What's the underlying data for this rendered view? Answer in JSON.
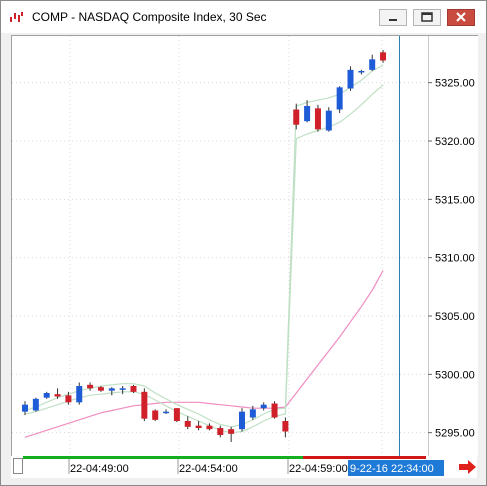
{
  "window": {
    "title": "COMP - NASDAQ Composite Index, 30 Sec",
    "icon": "chart-app-icon",
    "buttons": [
      "minimize",
      "maximize",
      "close"
    ]
  },
  "colors": {
    "up_candle": "#1e5bd6",
    "down_candle": "#d0202a",
    "band": "#bfe0c4",
    "slow_ma": "#f08cc0",
    "cursor_line": "#2a7fb0",
    "cursor_label_bg": "#1e7ad6",
    "arrow": "#e0201a",
    "timebar_green": "#12b01e",
    "timebar_red": "#d01616"
  },
  "chart_data": {
    "type": "candlestick",
    "title": "COMP - NASDAQ Composite Index, 30 Sec",
    "y_axis": {
      "range": [
        5293,
        5329
      ],
      "ticks": [
        "5295.00",
        "5300.00",
        "5305.00",
        "5310.00",
        "5315.00",
        "5320.00",
        "5325.00"
      ],
      "position": "right"
    },
    "x_axis": {
      "tick_labels": [
        "22-04:49:00",
        "22-04:54:00",
        "22-04:59:00"
      ],
      "cursor_label": "9-22-16 22:34:00"
    },
    "grid": true,
    "candles": [
      {
        "o": 5296.8,
        "h": 5297.7,
        "l": 5296.5,
        "c": 5297.4
      },
      {
        "o": 5296.9,
        "h": 5298.0,
        "l": 5296.8,
        "c": 5297.9
      },
      {
        "o": 5298.0,
        "h": 5298.5,
        "l": 5297.9,
        "c": 5298.4
      },
      {
        "o": 5298.3,
        "h": 5298.8,
        "l": 5297.9,
        "c": 5298.1
      },
      {
        "o": 5298.2,
        "h": 5298.5,
        "l": 5297.4,
        "c": 5297.6
      },
      {
        "o": 5297.6,
        "h": 5299.3,
        "l": 5297.4,
        "c": 5299.0
      },
      {
        "o": 5299.1,
        "h": 5299.3,
        "l": 5298.6,
        "c": 5298.8
      },
      {
        "o": 5298.9,
        "h": 5299.0,
        "l": 5298.5,
        "c": 5298.6
      },
      {
        "o": 5298.6,
        "h": 5298.9,
        "l": 5298.2,
        "c": 5298.8
      },
      {
        "o": 5298.7,
        "h": 5299.0,
        "l": 5298.3,
        "c": 5298.8
      },
      {
        "o": 5299.0,
        "h": 5299.1,
        "l": 5298.4,
        "c": 5298.5
      },
      {
        "o": 5298.5,
        "h": 5298.8,
        "l": 5296.0,
        "c": 5296.2
      },
      {
        "o": 5296.9,
        "h": 5297.0,
        "l": 5296.0,
        "c": 5296.1
      },
      {
        "o": 5296.7,
        "h": 5297.0,
        "l": 5296.6,
        "c": 5296.8
      },
      {
        "o": 5297.1,
        "h": 5297.1,
        "l": 5295.9,
        "c": 5296.0
      },
      {
        "o": 5296.0,
        "h": 5296.4,
        "l": 5295.3,
        "c": 5295.5
      },
      {
        "o": 5295.6,
        "h": 5296.0,
        "l": 5295.2,
        "c": 5295.4
      },
      {
        "o": 5295.6,
        "h": 5295.8,
        "l": 5295.2,
        "c": 5295.3
      },
      {
        "o": 5295.4,
        "h": 5295.6,
        "l": 5294.6,
        "c": 5294.8
      },
      {
        "o": 5295.3,
        "h": 5295.5,
        "l": 5294.2,
        "c": 5294.9
      },
      {
        "o": 5295.3,
        "h": 5297.1,
        "l": 5295.1,
        "c": 5296.8
      },
      {
        "o": 5296.3,
        "h": 5297.3,
        "l": 5296.1,
        "c": 5297.0
      },
      {
        "o": 5297.1,
        "h": 5297.6,
        "l": 5296.9,
        "c": 5297.4
      },
      {
        "o": 5297.5,
        "h": 5297.7,
        "l": 5296.2,
        "c": 5296.3
      },
      {
        "o": 5296.0,
        "h": 5296.3,
        "l": 5294.6,
        "c": 5295.1
      },
      {
        "o": 5322.7,
        "h": 5323.2,
        "l": 5321.0,
        "c": 5321.4
      },
      {
        "o": 5321.7,
        "h": 5323.5,
        "l": 5321.6,
        "c": 5323.0
      },
      {
        "o": 5322.8,
        "h": 5323.1,
        "l": 5320.8,
        "c": 5321.0
      },
      {
        "o": 5320.9,
        "h": 5322.9,
        "l": 5320.8,
        "c": 5322.6
      },
      {
        "o": 5322.7,
        "h": 5324.7,
        "l": 5322.4,
        "c": 5324.6
      },
      {
        "o": 5324.5,
        "h": 5326.4,
        "l": 5324.3,
        "c": 5326.1
      },
      {
        "o": 5325.9,
        "h": 5326.1,
        "l": 5325.7,
        "c": 5326.0
      },
      {
        "o": 5326.1,
        "h": 5327.4,
        "l": 5326.0,
        "c": 5327.0
      },
      {
        "o": 5327.6,
        "h": 5327.8,
        "l": 5326.7,
        "c": 5326.9
      }
    ],
    "band_upper": [
      5296.9,
      5297.2,
      5297.6,
      5298.0,
      5298.3,
      5298.6,
      5298.8,
      5299.0,
      5299.1,
      5299.2,
      5299.2,
      5299.0,
      5298.4,
      5297.9,
      5297.4,
      5297.0,
      5296.6,
      5296.1,
      5295.7,
      5295.5,
      5295.7,
      5296.1,
      5296.6,
      5297.0,
      5297.1,
      5323.0,
      5323.3,
      5323.5,
      5323.7,
      5324.0,
      5324.6,
      5325.2,
      5326.0,
      5326.5
    ],
    "band_lower": [
      5296.6,
      5296.8,
      5297.1,
      5297.4,
      5297.7,
      5298.0,
      5298.2,
      5298.3,
      5298.4,
      5298.5,
      5298.5,
      5298.3,
      5297.8,
      5297.3,
      5296.8,
      5296.4,
      5296.0,
      5295.6,
      5295.2,
      5295.0,
      5295.1,
      5295.5,
      5296.0,
      5296.4,
      5296.6,
      5320.2,
      5320.6,
      5320.9,
      5321.2,
      5321.6,
      5322.3,
      5323.1,
      5324.0,
      5324.8
    ],
    "slow_ma": [
      5294.6,
      5294.9,
      5295.2,
      5295.5,
      5295.8,
      5296.1,
      5296.4,
      5296.7,
      5296.9,
      5297.1,
      5297.3,
      5297.4,
      5297.5,
      5297.6,
      5297.6,
      5297.6,
      5297.6,
      5297.5,
      5297.4,
      5297.3,
      5297.2,
      5297.1,
      5297.1,
      5297.1,
      5297.2,
      5298.4,
      5299.6,
      5300.8,
      5302.0,
      5303.2,
      5304.5,
      5305.8,
      5307.2,
      5308.9
    ]
  }
}
